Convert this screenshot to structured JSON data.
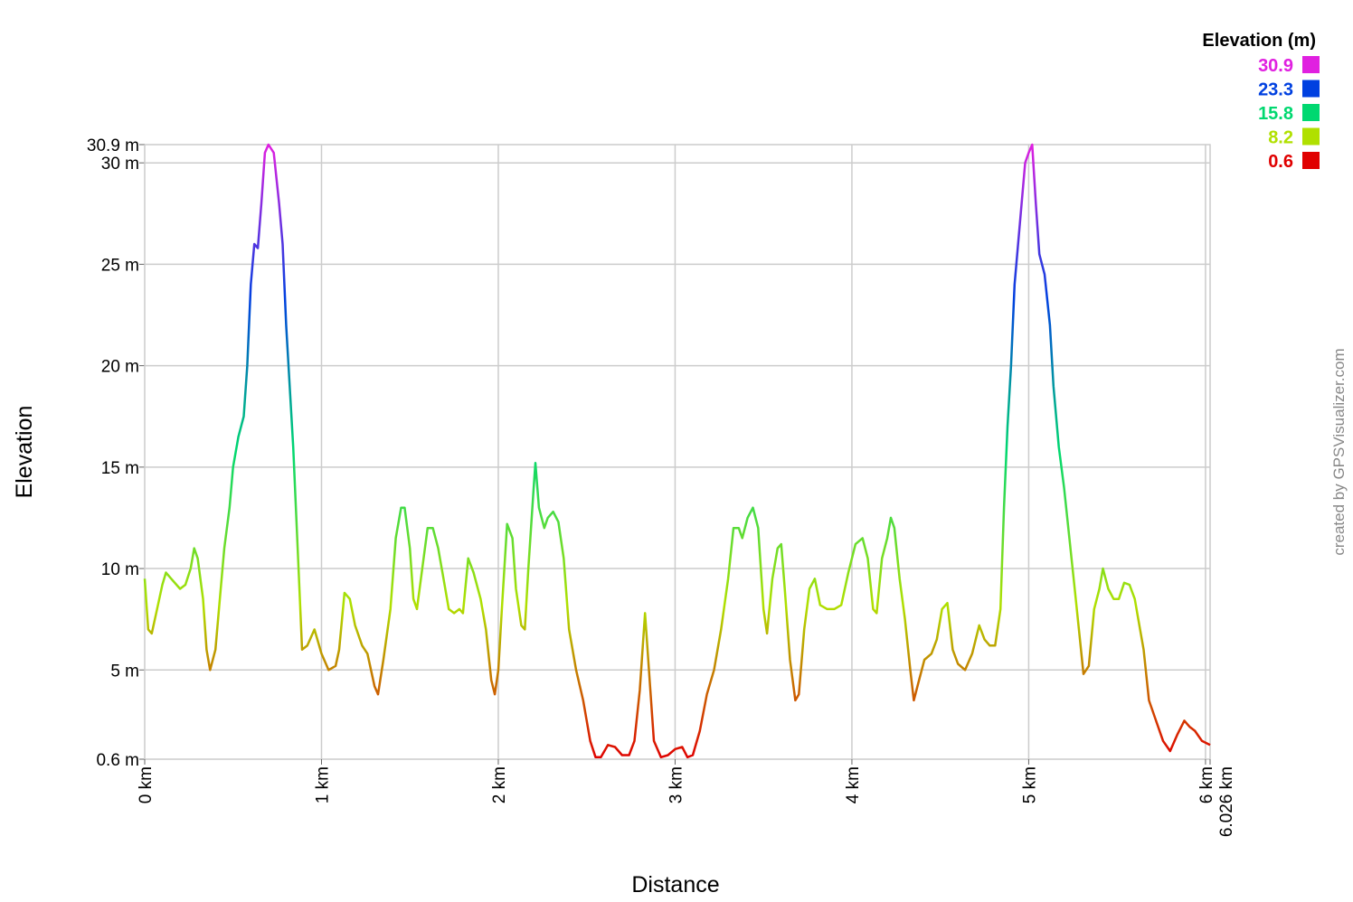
{
  "chart_data": {
    "type": "line",
    "xlabel": "Distance",
    "ylabel": "Elevation",
    "legend_title": "Elevation (m)",
    "legend_position": "top-right",
    "color_scale": [
      {
        "value": 30.9,
        "color": "#e020e0"
      },
      {
        "value": 23.3,
        "color": "#0040e0"
      },
      {
        "value": 15.8,
        "color": "#00d870"
      },
      {
        "value": 8.2,
        "color": "#b0e000"
      },
      {
        "value": 0.6,
        "color": "#e00000"
      }
    ],
    "watermark": "created by GPSVisualizer.com",
    "grid": true,
    "xlim": [
      0,
      6.026
    ],
    "ylim": [
      0.6,
      30.9
    ],
    "xticks": [
      {
        "value": 0,
        "label": "0 km"
      },
      {
        "value": 1,
        "label": "1 km"
      },
      {
        "value": 2,
        "label": "2 km"
      },
      {
        "value": 3,
        "label": "3 km"
      },
      {
        "value": 4,
        "label": "4 km"
      },
      {
        "value": 5,
        "label": "5 km"
      },
      {
        "value": 6,
        "label": "6 km"
      },
      {
        "value": 6.026,
        "label": "6.026 km"
      }
    ],
    "yticks": [
      {
        "value": 0.6,
        "label": "0.6 m"
      },
      {
        "value": 5,
        "label": "5 m"
      },
      {
        "value": 10,
        "label": "10 m"
      },
      {
        "value": 15,
        "label": "15 m"
      },
      {
        "value": 20,
        "label": "20 m"
      },
      {
        "value": 25,
        "label": "25 m"
      },
      {
        "value": 30,
        "label": "30 m"
      },
      {
        "value": 30.9,
        "label": "30.9 m"
      }
    ],
    "x": [
      0,
      0.02,
      0.04,
      0.07,
      0.1,
      0.12,
      0.15,
      0.2,
      0.23,
      0.26,
      0.28,
      0.3,
      0.33,
      0.35,
      0.37,
      0.4,
      0.42,
      0.45,
      0.48,
      0.5,
      0.53,
      0.56,
      0.58,
      0.6,
      0.62,
      0.64,
      0.66,
      0.68,
      0.7,
      0.73,
      0.76,
      0.78,
      0.8,
      0.82,
      0.84,
      0.87,
      0.89,
      0.92,
      0.96,
      1.0,
      1.04,
      1.08,
      1.1,
      1.13,
      1.16,
      1.19,
      1.23,
      1.26,
      1.3,
      1.32,
      1.35,
      1.39,
      1.42,
      1.45,
      1.47,
      1.5,
      1.52,
      1.54,
      1.57,
      1.6,
      1.63,
      1.66,
      1.69,
      1.72,
      1.75,
      1.78,
      1.8,
      1.83,
      1.86,
      1.9,
      1.93,
      1.96,
      1.98,
      2.0,
      2.02,
      2.05,
      2.08,
      2.1,
      2.13,
      2.15,
      2.17,
      2.2,
      2.21,
      2.23,
      2.26,
      2.28,
      2.31,
      2.34,
      2.37,
      2.4,
      2.44,
      2.48,
      2.52,
      2.55,
      2.58,
      2.62,
      2.66,
      2.7,
      2.74,
      2.77,
      2.8,
      2.83,
      2.86,
      2.88,
      2.92,
      2.96,
      3.0,
      3.04,
      3.07,
      3.1,
      3.14,
      3.18,
      3.22,
      3.26,
      3.3,
      3.33,
      3.36,
      3.38,
      3.41,
      3.44,
      3.47,
      3.5,
      3.52,
      3.55,
      3.58,
      3.6,
      3.62,
      3.65,
      3.68,
      3.7,
      3.73,
      3.76,
      3.79,
      3.82,
      3.86,
      3.9,
      3.94,
      3.98,
      4.02,
      4.06,
      4.09,
      4.12,
      4.14,
      4.17,
      4.2,
      4.22,
      4.24,
      4.27,
      4.3,
      4.33,
      4.35,
      4.38,
      4.41,
      4.45,
      4.48,
      4.51,
      4.54,
      4.57,
      4.6,
      4.64,
      4.68,
      4.72,
      4.75,
      4.78,
      4.81,
      4.84,
      4.86,
      4.88,
      4.9,
      4.92,
      4.94,
      4.96,
      4.98,
      5.0,
      5.02,
      5.04,
      5.06,
      5.09,
      5.12,
      5.14,
      5.17,
      5.2,
      5.23,
      5.26,
      5.29,
      5.31,
      5.34,
      5.37,
      5.4,
      5.42,
      5.45,
      5.48,
      5.51,
      5.54,
      5.57,
      5.6,
      5.62,
      5.65,
      5.68,
      5.72,
      5.76,
      5.8,
      5.84,
      5.88,
      5.91,
      5.94,
      5.98,
      6.026
    ],
    "values": [
      9.5,
      7,
      6.8,
      8,
      9.2,
      9.8,
      9.5,
      9.0,
      9.2,
      10.0,
      11.0,
      10.5,
      8.5,
      6,
      5.0,
      6.0,
      8,
      11,
      13,
      15,
      16.5,
      17.5,
      20,
      24,
      26,
      25.8,
      28,
      30.5,
      30.9,
      30.5,
      28,
      26,
      22,
      19,
      16,
      10,
      6,
      6.2,
      7,
      5.8,
      5.0,
      5.2,
      6.0,
      8.8,
      8.5,
      7.2,
      6.2,
      5.8,
      4.2,
      3.8,
      5.5,
      8,
      11.5,
      13,
      13,
      11,
      8.5,
      8,
      10,
      12,
      12,
      11,
      9.5,
      8,
      7.8,
      8,
      7.8,
      10.5,
      9.8,
      8.5,
      7,
      4.5,
      3.8,
      5,
      8,
      12.2,
      11.5,
      9,
      7.2,
      7,
      10,
      14,
      15.2,
      13,
      12,
      12.5,
      12.8,
      12.3,
      10.5,
      7,
      5,
      3.5,
      1.5,
      0.7,
      0.7,
      1.3,
      1.2,
      0.8,
      0.8,
      1.5,
      4,
      7.8,
      4,
      1.5,
      0.7,
      0.8,
      1.1,
      1.2,
      0.7,
      0.8,
      2,
      3.8,
      5,
      7,
      9.5,
      12,
      12,
      11.5,
      12.5,
      13,
      12,
      8,
      6.8,
      9.5,
      11,
      11.2,
      9,
      5.5,
      3.5,
      3.8,
      7,
      9,
      9.5,
      8.2,
      8,
      8,
      8.2,
      9.8,
      11.2,
      11.5,
      10.5,
      8,
      7.8,
      10.5,
      11.5,
      12.5,
      12,
      9.5,
      7.5,
      5,
      3.5,
      4.5,
      5.5,
      5.8,
      6.5,
      8,
      8.3,
      6,
      5.3,
      5,
      5.8,
      7.2,
      6.5,
      6.2,
      6.2,
      8,
      13,
      17,
      20,
      24,
      26,
      28,
      30,
      30.5,
      30.9,
      28,
      25.5,
      24.5,
      22,
      19,
      16,
      14,
      11.5,
      9,
      6.5,
      4.8,
      5.2,
      8,
      9,
      10,
      9,
      8.5,
      8.5,
      9.3,
      9.2,
      8.5,
      7.5,
      6,
      3.5,
      2.5,
      1.5,
      1.0,
      1.8,
      2.5,
      2.2,
      2.0,
      1.5,
      1.3
    ]
  }
}
